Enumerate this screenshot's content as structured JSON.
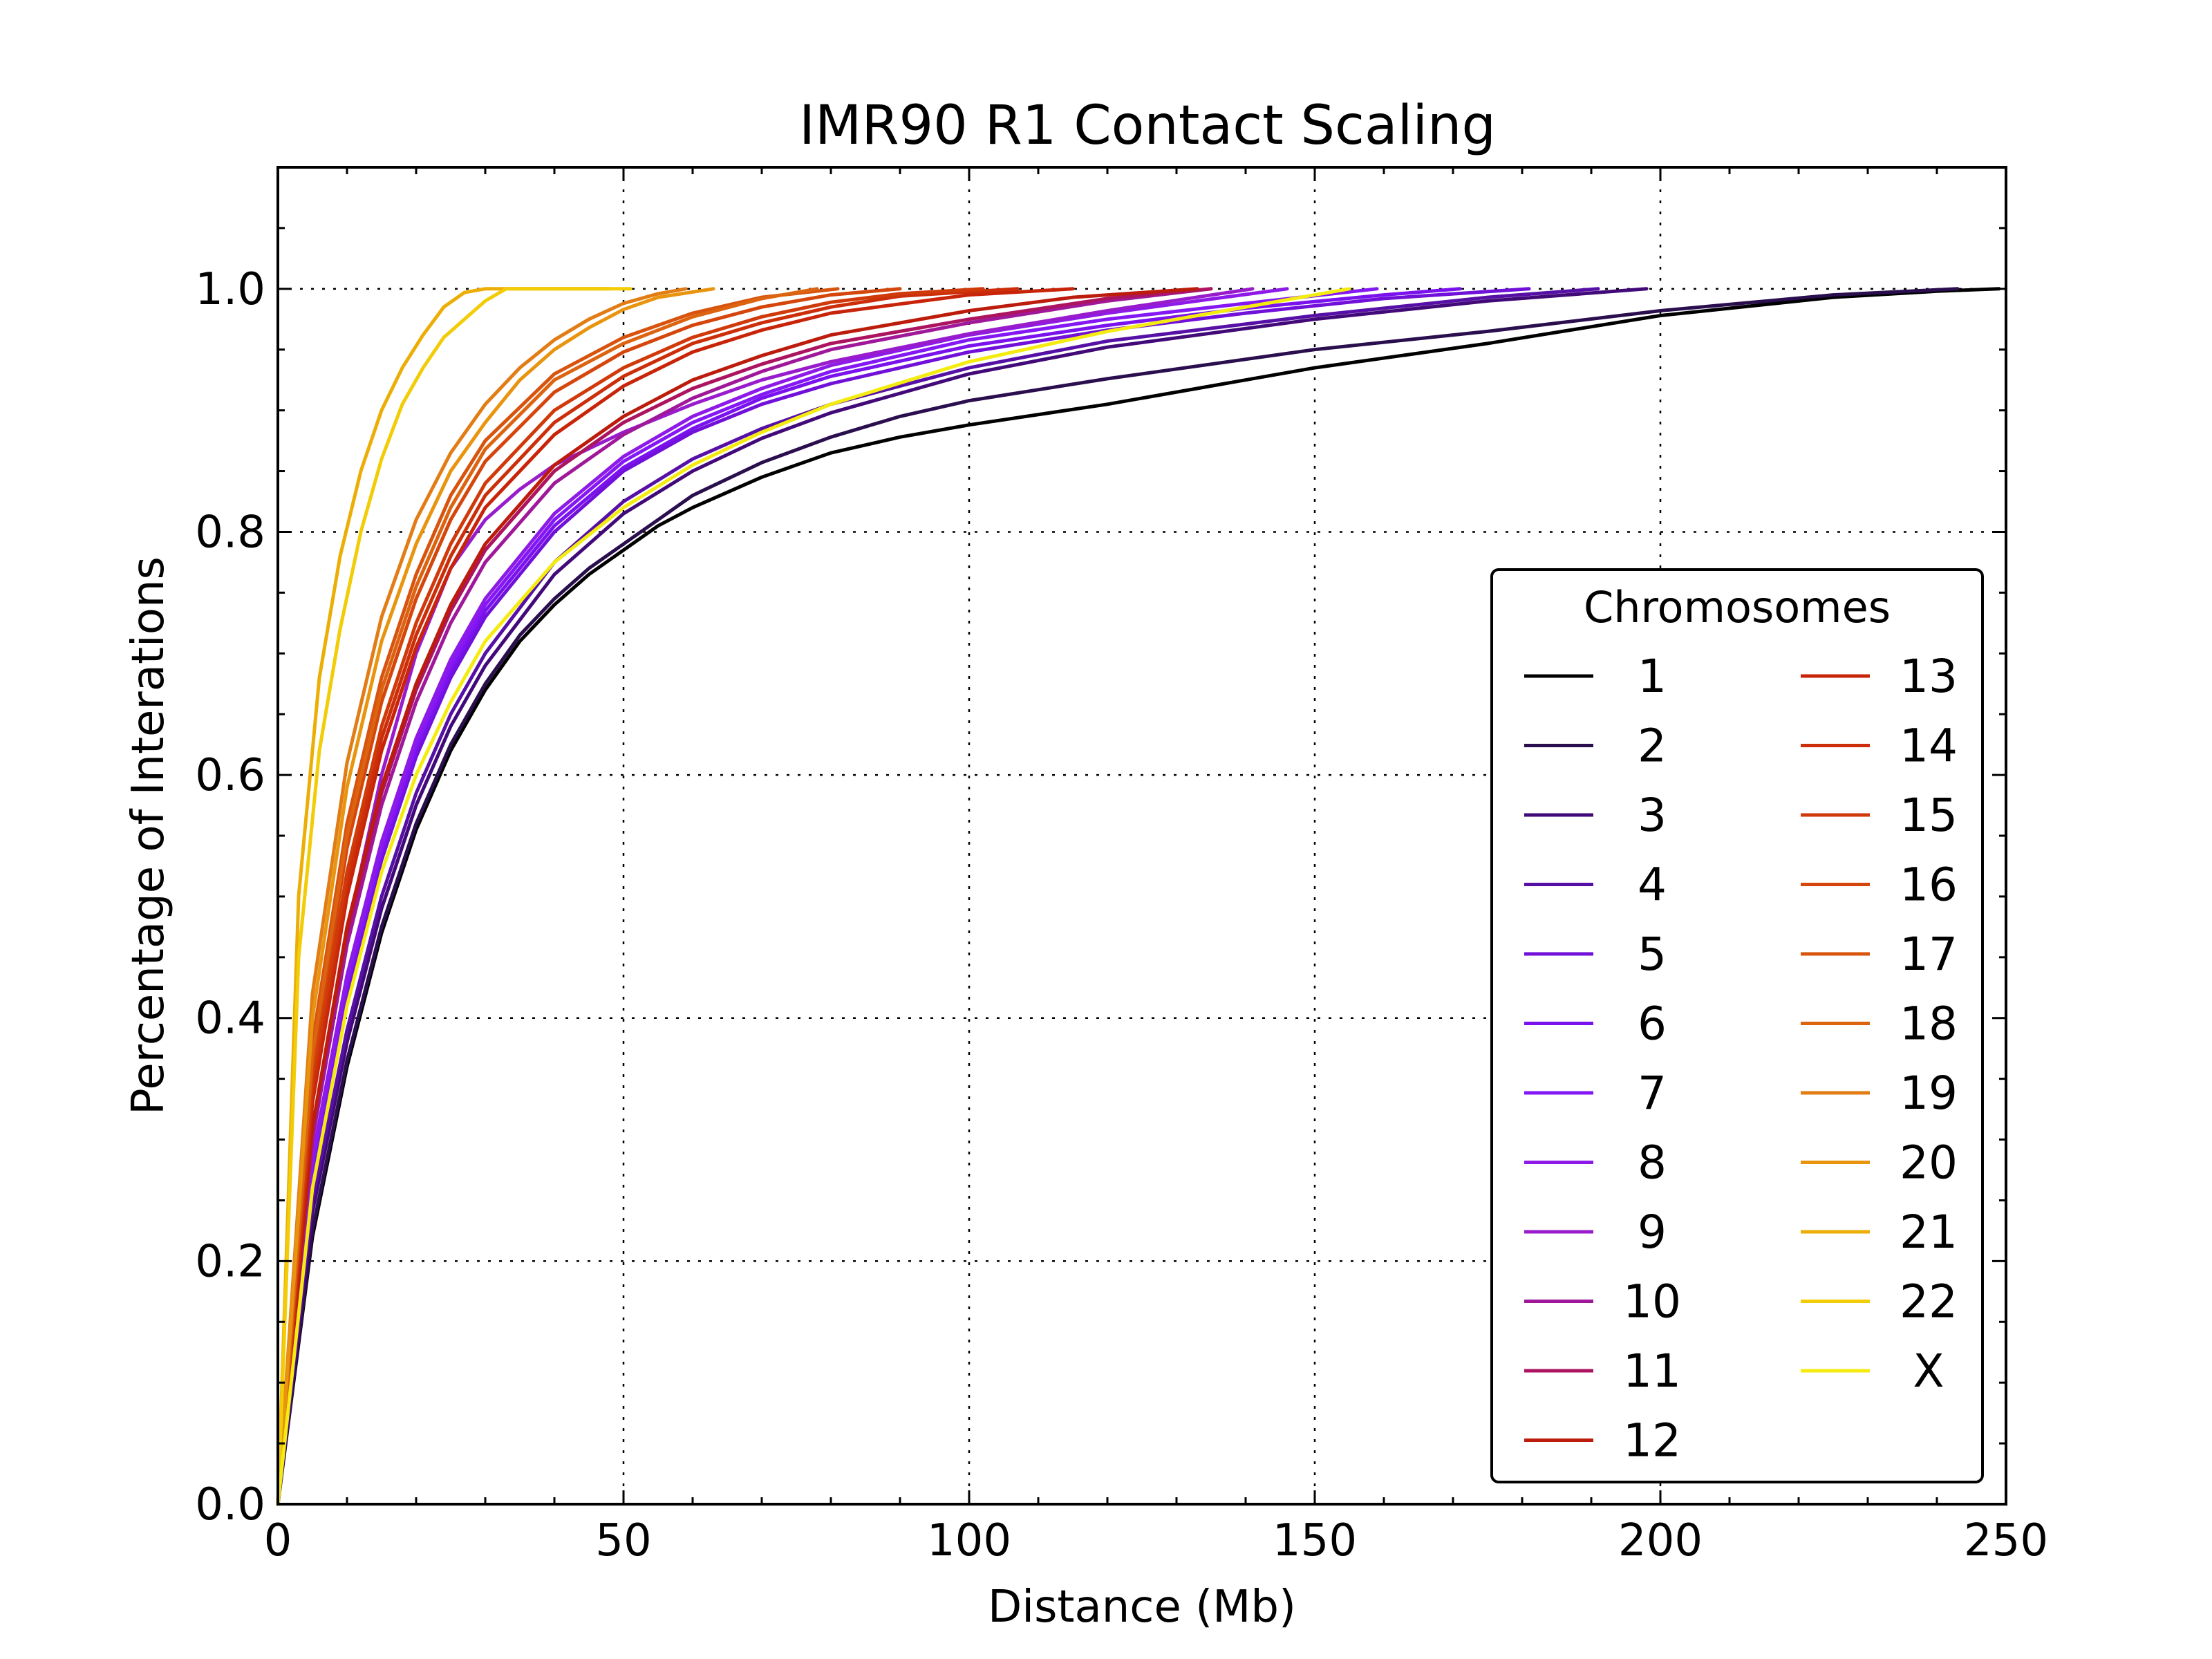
{
  "chart_data": {
    "type": "line",
    "title": "IMR90 R1 Contact Scaling",
    "xlabel": "Distance (Mb)",
    "ylabel": "Percentage of Interations",
    "xlim": [
      0,
      250
    ],
    "ylim": [
      0,
      1.1
    ],
    "xticks": [
      0,
      50,
      100,
      150,
      200,
      250
    ],
    "xtick_labels": [
      "0",
      "50",
      "100",
      "150",
      "200",
      "250"
    ],
    "yticks": [
      0,
      0.2,
      0.4,
      0.6,
      0.8,
      1.0
    ],
    "ytick_labels": [
      "0.0",
      "0.2",
      "0.4",
      "0.6",
      "0.8",
      "1.0"
    ],
    "grid": true,
    "legend": {
      "title": "Chromosomes",
      "placement": "lower-right",
      "columns": 2
    },
    "series": [
      {
        "name": "1",
        "color": "#000000",
        "x": [
          0,
          5,
          10,
          15,
          20,
          25,
          30,
          35,
          40,
          45,
          50,
          55,
          60,
          70,
          80,
          90,
          100,
          120,
          150,
          175,
          200,
          225,
          240,
          249
        ],
        "y": [
          0,
          0.22,
          0.36,
          0.47,
          0.555,
          0.62,
          0.67,
          0.71,
          0.74,
          0.765,
          0.785,
          0.805,
          0.82,
          0.845,
          0.865,
          0.878,
          0.888,
          0.905,
          0.935,
          0.955,
          0.978,
          0.993,
          0.998,
          1.0
        ]
      },
      {
        "name": "2",
        "color": "#2a0e4e",
        "x": [
          0,
          5,
          10,
          15,
          20,
          25,
          30,
          35,
          40,
          45,
          50,
          55,
          60,
          70,
          80,
          90,
          100,
          120,
          150,
          175,
          200,
          225,
          243
        ],
        "y": [
          0,
          0.225,
          0.365,
          0.475,
          0.56,
          0.625,
          0.675,
          0.715,
          0.745,
          0.77,
          0.79,
          0.81,
          0.83,
          0.857,
          0.878,
          0.895,
          0.908,
          0.926,
          0.95,
          0.965,
          0.982,
          0.995,
          1.0
        ]
      },
      {
        "name": "3",
        "color": "#420a78",
        "x": [
          0,
          5,
          10,
          15,
          20,
          25,
          30,
          40,
          50,
          60,
          70,
          80,
          100,
          120,
          150,
          175,
          198
        ],
        "y": [
          0,
          0.24,
          0.38,
          0.49,
          0.575,
          0.64,
          0.69,
          0.765,
          0.815,
          0.85,
          0.877,
          0.898,
          0.93,
          0.952,
          0.975,
          0.99,
          1.0
        ]
      },
      {
        "name": "4",
        "color": "#5710a6",
        "x": [
          0,
          5,
          10,
          15,
          20,
          25,
          30,
          40,
          50,
          60,
          70,
          80,
          100,
          120,
          150,
          175,
          191
        ],
        "y": [
          0,
          0.25,
          0.39,
          0.5,
          0.585,
          0.65,
          0.7,
          0.775,
          0.825,
          0.86,
          0.885,
          0.905,
          0.935,
          0.957,
          0.978,
          0.993,
          1.0
        ]
      },
      {
        "name": "5",
        "color": "#7010d8",
        "x": [
          0,
          5,
          10,
          15,
          20,
          25,
          30,
          40,
          50,
          60,
          70,
          80,
          100,
          120,
          140,
          160,
          181
        ],
        "y": [
          0,
          0.27,
          0.42,
          0.53,
          0.615,
          0.68,
          0.73,
          0.8,
          0.85,
          0.882,
          0.905,
          0.922,
          0.948,
          0.966,
          0.98,
          0.992,
          1.0
        ]
      },
      {
        "name": "6",
        "color": "#7a12ee",
        "x": [
          0,
          5,
          10,
          15,
          20,
          25,
          30,
          40,
          50,
          60,
          70,
          80,
          100,
          120,
          140,
          160,
          171
        ],
        "y": [
          0,
          0.275,
          0.425,
          0.535,
          0.62,
          0.685,
          0.735,
          0.805,
          0.853,
          0.885,
          0.91,
          0.928,
          0.953,
          0.97,
          0.984,
          0.995,
          1.0
        ]
      },
      {
        "name": "7",
        "color": "#8418f4",
        "x": [
          0,
          5,
          10,
          15,
          20,
          25,
          30,
          40,
          50,
          60,
          70,
          80,
          100,
          120,
          140,
          159
        ],
        "y": [
          0,
          0.28,
          0.43,
          0.54,
          0.625,
          0.69,
          0.74,
          0.81,
          0.858,
          0.89,
          0.913,
          0.932,
          0.958,
          0.975,
          0.988,
          1.0
        ]
      },
      {
        "name": "8",
        "color": "#8e1ae8",
        "x": [
          0,
          5,
          10,
          15,
          20,
          25,
          30,
          40,
          50,
          60,
          70,
          80,
          100,
          120,
          146
        ],
        "y": [
          0,
          0.285,
          0.435,
          0.545,
          0.63,
          0.695,
          0.745,
          0.815,
          0.862,
          0.895,
          0.918,
          0.937,
          0.962,
          0.98,
          1.0
        ]
      },
      {
        "name": "9",
        "color": "#981ccc",
        "x": [
          0,
          5,
          10,
          15,
          20,
          25,
          30,
          35,
          40,
          50,
          60,
          70,
          80,
          100,
          120,
          141
        ],
        "y": [
          0,
          0.3,
          0.47,
          0.6,
          0.7,
          0.77,
          0.81,
          0.835,
          0.855,
          0.882,
          0.905,
          0.925,
          0.94,
          0.963,
          0.982,
          1.0
        ]
      },
      {
        "name": "10",
        "color": "#a0189a",
        "x": [
          0,
          5,
          10,
          15,
          20,
          25,
          30,
          40,
          50,
          60,
          70,
          80,
          100,
          120,
          135
        ],
        "y": [
          0,
          0.3,
          0.46,
          0.575,
          0.66,
          0.725,
          0.775,
          0.84,
          0.88,
          0.91,
          0.932,
          0.95,
          0.972,
          0.99,
          1.0
        ]
      },
      {
        "name": "11",
        "color": "#ac1460",
        "x": [
          0,
          5,
          10,
          15,
          20,
          25,
          30,
          40,
          50,
          60,
          70,
          80,
          100,
          120,
          135
        ],
        "y": [
          0,
          0.31,
          0.47,
          0.585,
          0.67,
          0.735,
          0.785,
          0.85,
          0.89,
          0.918,
          0.938,
          0.955,
          0.975,
          0.992,
          1.0
        ]
      },
      {
        "name": "12",
        "color": "#bc1c0c",
        "x": [
          0,
          5,
          10,
          15,
          20,
          25,
          30,
          40,
          50,
          60,
          70,
          80,
          100,
          115,
          133
        ],
        "y": [
          0,
          0.31,
          0.475,
          0.59,
          0.675,
          0.74,
          0.79,
          0.855,
          0.895,
          0.925,
          0.945,
          0.962,
          0.982,
          0.993,
          1.0
        ]
      },
      {
        "name": "13",
        "color": "#c8240a",
        "x": [
          0,
          5,
          10,
          15,
          20,
          25,
          30,
          40,
          50,
          60,
          70,
          80,
          100,
          115
        ],
        "y": [
          0,
          0.33,
          0.5,
          0.62,
          0.705,
          0.77,
          0.82,
          0.88,
          0.92,
          0.948,
          0.966,
          0.98,
          0.995,
          1.0
        ]
      },
      {
        "name": "14",
        "color": "#cc2e0a",
        "x": [
          0,
          5,
          10,
          15,
          20,
          25,
          30,
          40,
          50,
          60,
          70,
          80,
          90,
          107
        ],
        "y": [
          0,
          0.34,
          0.51,
          0.63,
          0.715,
          0.78,
          0.83,
          0.89,
          0.928,
          0.955,
          0.972,
          0.985,
          0.994,
          1.0
        ]
      },
      {
        "name": "15",
        "color": "#d03a0a",
        "x": [
          0,
          5,
          10,
          15,
          20,
          25,
          30,
          40,
          50,
          60,
          70,
          80,
          90,
          102
        ],
        "y": [
          0,
          0.35,
          0.52,
          0.64,
          0.725,
          0.79,
          0.84,
          0.9,
          0.935,
          0.96,
          0.977,
          0.989,
          0.996,
          1.0
        ]
      },
      {
        "name": "16",
        "color": "#d4460c",
        "x": [
          0,
          5,
          10,
          15,
          20,
          25,
          30,
          40,
          50,
          60,
          70,
          80,
          90
        ],
        "y": [
          0,
          0.36,
          0.54,
          0.66,
          0.745,
          0.81,
          0.858,
          0.915,
          0.948,
          0.97,
          0.985,
          0.995,
          1.0
        ]
      },
      {
        "name": "17",
        "color": "#d8540e",
        "x": [
          0,
          5,
          10,
          15,
          20,
          25,
          30,
          40,
          50,
          60,
          70,
          81
        ],
        "y": [
          0,
          0.38,
          0.56,
          0.68,
          0.765,
          0.83,
          0.875,
          0.93,
          0.96,
          0.98,
          0.993,
          1.0
        ]
      },
      {
        "name": "18",
        "color": "#dc6410",
        "x": [
          0,
          5,
          10,
          15,
          20,
          25,
          30,
          40,
          50,
          60,
          70,
          78
        ],
        "y": [
          0,
          0.37,
          0.55,
          0.67,
          0.755,
          0.82,
          0.868,
          0.925,
          0.955,
          0.977,
          0.992,
          1.0
        ]
      },
      {
        "name": "19",
        "color": "#e27c14",
        "x": [
          0,
          5,
          10,
          15,
          20,
          25,
          30,
          35,
          40,
          45,
          50,
          55,
          59
        ],
        "y": [
          0,
          0.42,
          0.61,
          0.73,
          0.81,
          0.865,
          0.905,
          0.935,
          0.958,
          0.975,
          0.988,
          0.996,
          1.0
        ]
      },
      {
        "name": "20",
        "color": "#e8940e",
        "x": [
          0,
          5,
          10,
          15,
          20,
          25,
          30,
          35,
          40,
          45,
          50,
          55,
          63
        ],
        "y": [
          0,
          0.4,
          0.59,
          0.71,
          0.79,
          0.85,
          0.89,
          0.925,
          0.95,
          0.968,
          0.983,
          0.993,
          1.0
        ]
      },
      {
        "name": "21",
        "color": "#ecae06",
        "x": [
          0,
          3,
          6,
          9,
          12,
          15,
          18,
          21,
          24,
          27,
          30,
          33,
          48
        ],
        "y": [
          0,
          0.5,
          0.68,
          0.78,
          0.85,
          0.9,
          0.935,
          0.962,
          0.985,
          0.997,
          1.0,
          1.0,
          1.0
        ]
      },
      {
        "name": "22",
        "color": "#f2cc06",
        "x": [
          0,
          3,
          6,
          9,
          12,
          15,
          18,
          21,
          24,
          27,
          30,
          33,
          51
        ],
        "y": [
          0,
          0.45,
          0.62,
          0.72,
          0.8,
          0.86,
          0.905,
          0.935,
          0.96,
          0.975,
          0.99,
          1.0,
          1.0
        ]
      },
      {
        "name": "X",
        "color": "#f4ec10",
        "x": [
          0,
          5,
          10,
          15,
          20,
          25,
          30,
          40,
          50,
          60,
          70,
          80,
          100,
          120,
          155
        ],
        "y": [
          0,
          0.26,
          0.41,
          0.52,
          0.6,
          0.66,
          0.71,
          0.775,
          0.82,
          0.855,
          0.882,
          0.905,
          0.94,
          0.965,
          1.0
        ]
      }
    ]
  }
}
